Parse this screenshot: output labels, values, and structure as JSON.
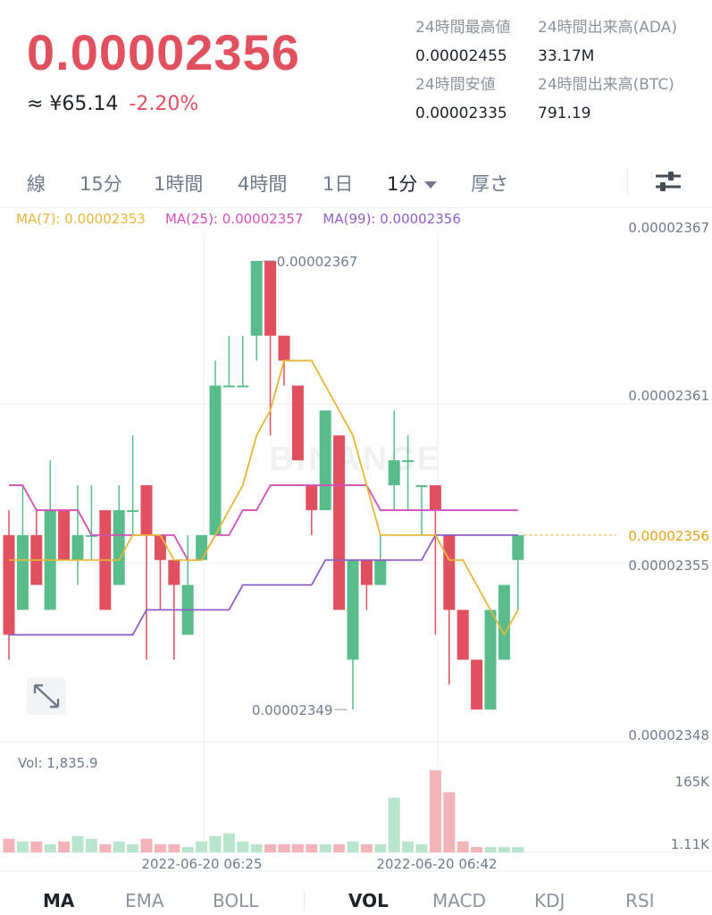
{
  "ticker": {
    "last_price": "0.00002356",
    "fiat_price": "≈ ¥65.14",
    "change_pct": "-2.20%"
  },
  "stats": {
    "high_label": "24時間最高値",
    "high_value": "0.00002455",
    "vol_ada_label": "24時間出来高(ADA)",
    "vol_ada_value": "33.17M",
    "low_label": "24時間安値",
    "low_value": "0.00002335",
    "vol_btc_label": "24時間出来高(BTC)",
    "vol_btc_value": "791.19"
  },
  "tabs": [
    {
      "label": "線"
    },
    {
      "label": "15分"
    },
    {
      "label": "1時間"
    },
    {
      "label": "4時間"
    },
    {
      "label": "1日"
    },
    {
      "label": "1分",
      "active": true
    },
    {
      "label": "厚さ"
    }
  ],
  "ma_legend": {
    "ma7": "MA(7): 0.00002353",
    "ma25": "MA(25): 0.00002357",
    "ma99": "MA(99): 0.00002356"
  },
  "colors": {
    "up": "#58bd8a",
    "down": "#e0505e",
    "ma7": "#e8b73a",
    "ma25": "#d34fb6",
    "ma99": "#8e5fc5",
    "price_text": "#e0505e",
    "current_price": "#e8a317"
  },
  "axis": {
    "price_ticks": [
      "0.00002367",
      "0.00002361",
      "0.00002355",
      "0.00002348"
    ],
    "current_price_label": "0.00002356",
    "volume_ticks": [
      "165K",
      "1.11K"
    ],
    "time_labels": [
      "2022-06-20 06:25",
      "2022-06-20 06:42"
    ]
  },
  "annotations": {
    "high": "0.00002367",
    "low": "0.00002349"
  },
  "watermark": "BINANCE",
  "volume_label": "Vol: 1,835.9",
  "indicator_tabs": [
    "MA",
    "EMA",
    "BOLL",
    "VOL",
    "MACD",
    "KDJ",
    "RSI"
  ],
  "chart_data": {
    "type": "candlestick",
    "candles": [
      {
        "o": 2.356e-05,
        "h": 2.357e-05,
        "l": 2.351e-05,
        "c": 2.352e-05,
        "v": 5
      },
      {
        "o": 2.353e-05,
        "h": 2.358e-05,
        "l": 2.353e-05,
        "c": 2.356e-05,
        "v": 4
      },
      {
        "o": 2.356e-05,
        "h": 2.357e-05,
        "l": 2.354e-05,
        "c": 2.354e-05,
        "v": 4
      },
      {
        "o": 2.353e-05,
        "h": 2.359e-05,
        "l": 2.353e-05,
        "c": 2.357e-05,
        "v": 3
      },
      {
        "o": 2.357e-05,
        "h": 2.357e-05,
        "l": 2.355e-05,
        "c": 2.355e-05,
        "v": 4
      },
      {
        "o": 2.355e-05,
        "h": 2.358e-05,
        "l": 2.354e-05,
        "c": 2.356e-05,
        "v": 6
      },
      {
        "o": 2.356e-05,
        "h": 2.358e-05,
        "l": 2.355e-05,
        "c": 2.356e-05,
        "v": 5
      },
      {
        "o": 2.357e-05,
        "h": 2.357e-05,
        "l": 2.353e-05,
        "c": 2.353e-05,
        "v": 3
      },
      {
        "o": 2.354e-05,
        "h": 2.358e-05,
        "l": 2.354e-05,
        "c": 2.357e-05,
        "v": 4
      },
      {
        "o": 2.357e-05,
        "h": 2.36e-05,
        "l": 2.356e-05,
        "c": 2.357e-05,
        "v": 3
      },
      {
        "o": 2.358e-05,
        "h": 2.358e-05,
        "l": 2.351e-05,
        "c": 2.356e-05,
        "v": 5
      },
      {
        "o": 2.356e-05,
        "h": 2.356e-05,
        "l": 2.353e-05,
        "c": 2.355e-05,
        "v": 3
      },
      {
        "o": 2.355e-05,
        "h": 2.355e-05,
        "l": 2.351e-05,
        "c": 2.354e-05,
        "v": 3
      },
      {
        "o": 2.352e-05,
        "h": 2.356e-05,
        "l": 2.352e-05,
        "c": 2.354e-05,
        "v": 2
      },
      {
        "o": 2.355e-05,
        "h": 2.356e-05,
        "l": 2.355e-05,
        "c": 2.356e-05,
        "v": 4
      },
      {
        "o": 2.356e-05,
        "h": 2.363e-05,
        "l": 2.356e-05,
        "c": 2.362e-05,
        "v": 6
      },
      {
        "o": 2.362e-05,
        "h": 2.364e-05,
        "l": 2.362e-05,
        "c": 2.362e-05,
        "v": 7
      },
      {
        "o": 2.362e-05,
        "h": 2.364e-05,
        "l": 2.362e-05,
        "c": 2.362e-05,
        "v": 4
      },
      {
        "o": 2.364e-05,
        "h": 2.367e-05,
        "l": 2.363e-05,
        "c": 2.367e-05,
        "v": 3
      },
      {
        "o": 2.367e-05,
        "h": 2.367e-05,
        "l": 2.36e-05,
        "c": 2.364e-05,
        "v": 3
      },
      {
        "o": 2.364e-05,
        "h": 2.364e-05,
        "l": 2.362e-05,
        "c": 2.363e-05,
        "v": 3
      },
      {
        "o": 2.362e-05,
        "h": 2.362e-05,
        "l": 2.359e-05,
        "c": 2.359e-05,
        "v": 3
      },
      {
        "o": 2.358e-05,
        "h": 2.358e-05,
        "l": 2.356e-05,
        "c": 2.357e-05,
        "v": 3
      },
      {
        "o": 2.357e-05,
        "h": 2.361e-05,
        "l": 2.357e-05,
        "c": 2.361e-05,
        "v": 3
      },
      {
        "o": 2.36e-05,
        "h": 2.36e-05,
        "l": 2.353e-05,
        "c": 2.353e-05,
        "v": 3
      },
      {
        "o": 2.351e-05,
        "h": 2.355e-05,
        "l": 2.349e-05,
        "c": 2.355e-05,
        "v": 4
      },
      {
        "o": 2.355e-05,
        "h": 2.355e-05,
        "l": 2.353e-05,
        "c": 2.354e-05,
        "v": 3
      },
      {
        "o": 2.354e-05,
        "h": 2.356e-05,
        "l": 2.354e-05,
        "c": 2.355e-05,
        "v": 3
      },
      {
        "o": 2.358e-05,
        "h": 2.361e-05,
        "l": 2.357e-05,
        "c": 2.359e-05,
        "v": 20
      },
      {
        "o": 2.359e-05,
        "h": 2.36e-05,
        "l": 2.357e-05,
        "c": 2.359e-05,
        "v": 4
      },
      {
        "o": 2.358e-05,
        "h": 2.358e-05,
        "l": 2.356e-05,
        "c": 2.358e-05,
        "v": 3
      },
      {
        "o": 2.358e-05,
        "h": 2.358e-05,
        "l": 2.352e-05,
        "c": 2.357e-05,
        "v": 30
      },
      {
        "o": 2.356e-05,
        "h": 2.356e-05,
        "l": 2.35e-05,
        "c": 2.353e-05,
        "v": 22
      },
      {
        "o": 2.353e-05,
        "h": 2.353e-05,
        "l": 2.351e-05,
        "c": 2.351e-05,
        "v": 4
      },
      {
        "o": 2.351e-05,
        "h": 2.351e-05,
        "l": 2.349e-05,
        "c": 2.349e-05,
        "v": 2
      },
      {
        "o": 2.349e-05,
        "h": 2.353e-05,
        "l": 2.349e-05,
        "c": 2.353e-05,
        "v": 2
      },
      {
        "o": 2.351e-05,
        "h": 2.354e-05,
        "l": 2.351e-05,
        "c": 2.354e-05,
        "v": 2
      },
      {
        "o": 2.355e-05,
        "h": 2.356e-05,
        "l": 2.353e-05,
        "c": 2.356e-05,
        "v": 2
      }
    ],
    "ma7": [
      2.355e-05,
      2.355e-05,
      2.355e-05,
      2.355e-05,
      2.355e-05,
      2.355e-05,
      2.355e-05,
      2.355e-05,
      2.355e-05,
      2.356e-05,
      2.356e-05,
      2.356e-05,
      2.355e-05,
      2.355e-05,
      2.355e-05,
      2.356e-05,
      2.357e-05,
      2.358e-05,
      2.36e-05,
      2.361e-05,
      2.363e-05,
      2.363e-05,
      2.363e-05,
      2.362e-05,
      2.361e-05,
      2.36e-05,
      2.358e-05,
      2.356e-05,
      2.356e-05,
      2.356e-05,
      2.356e-05,
      2.356e-05,
      2.355e-05,
      2.355e-05,
      2.354e-05,
      2.353e-05,
      2.352e-05,
      2.353e-05
    ],
    "ma25": [
      2.358e-05,
      2.358e-05,
      2.357e-05,
      2.357e-05,
      2.357e-05,
      2.357e-05,
      2.356e-05,
      2.356e-05,
      2.356e-05,
      2.356e-05,
      2.356e-05,
      2.356e-05,
      2.356e-05,
      2.355e-05,
      2.355e-05,
      2.356e-05,
      2.356e-05,
      2.357e-05,
      2.357e-05,
      2.358e-05,
      2.358e-05,
      2.358e-05,
      2.358e-05,
      2.358e-05,
      2.358e-05,
      2.358e-05,
      2.358e-05,
      2.357e-05,
      2.357e-05,
      2.357e-05,
      2.357e-05,
      2.357e-05,
      2.357e-05,
      2.357e-05,
      2.357e-05,
      2.357e-05,
      2.357e-05,
      2.357e-05
    ],
    "ma99": [
      2.352e-05,
      2.352e-05,
      2.352e-05,
      2.352e-05,
      2.352e-05,
      2.352e-05,
      2.352e-05,
      2.352e-05,
      2.352e-05,
      2.352e-05,
      2.353e-05,
      2.353e-05,
      2.353e-05,
      2.353e-05,
      2.353e-05,
      2.353e-05,
      2.353e-05,
      2.354e-05,
      2.354e-05,
      2.354e-05,
      2.354e-05,
      2.354e-05,
      2.354e-05,
      2.355e-05,
      2.355e-05,
      2.355e-05,
      2.355e-05,
      2.355e-05,
      2.355e-05,
      2.355e-05,
      2.355e-05,
      2.356e-05,
      2.356e-05,
      2.356e-05,
      2.356e-05,
      2.356e-05,
      2.356e-05,
      2.356e-05
    ],
    "ylim": [
      2.348e-05,
      2.367e-05
    ]
  }
}
